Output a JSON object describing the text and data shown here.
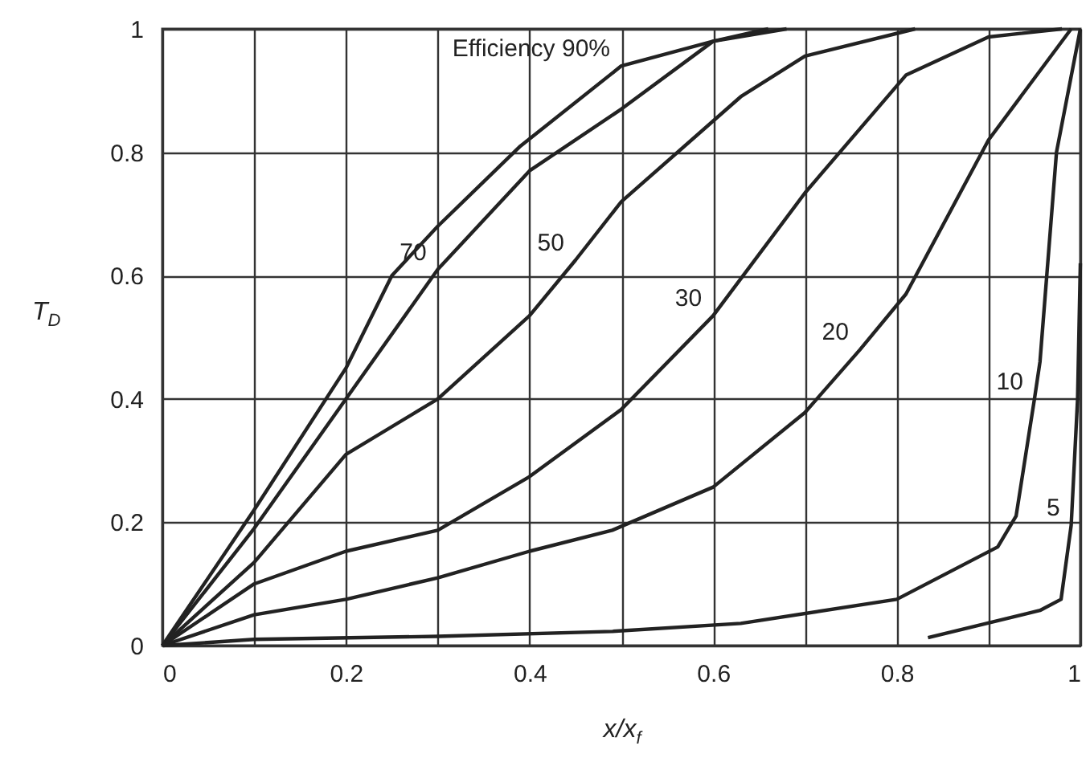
{
  "chart_data": {
    "type": "line",
    "xlabel": "x/x$_{f}$",
    "ylabel": "T$_{D}$",
    "xlim": [
      0,
      1
    ],
    "ylim": [
      0,
      1
    ],
    "xticks": [
      0,
      {
        "value": 0.1,
        "label": null
      },
      0.2,
      {
        "value": 0.3,
        "label": null
      },
      0.4,
      {
        "value": 0.5,
        "label": null
      },
      0.6,
      {
        "value": 0.7,
        "label": null
      },
      0.8,
      {
        "value": 0.9,
        "label": null
      },
      1
    ],
    "yticks": [
      0,
      0.2,
      0.4,
      0.6,
      0.8,
      1
    ],
    "grid": true,
    "marker": "none",
    "line_style": "solid",
    "series": [
      {
        "color": "#222222",
        "x": [
          0,
          0.1,
          0.2,
          0.25,
          0.3,
          0.39,
          0.5,
          0.6,
          0.68
        ],
        "values": [
          0,
          0.22,
          0.45,
          0.6,
          0.68,
          0.81,
          0.94,
          0.98,
          1.0
        ]
      },
      {
        "color": "#222222",
        "x": [
          0,
          0.1,
          0.2,
          0.3,
          0.4,
          0.5,
          0.6,
          0.66
        ],
        "values": [
          0,
          0.19,
          0.4,
          0.61,
          0.77,
          0.87,
          0.98,
          1.0
        ]
      },
      {
        "color": "#222222",
        "x": [
          0,
          0.1,
          0.2,
          0.3,
          0.4,
          0.45,
          0.5,
          0.63,
          0.7,
          0.82
        ],
        "values": [
          0,
          0.135,
          0.31,
          0.4,
          0.535,
          0.625,
          0.72,
          0.89,
          0.956,
          1.0
        ]
      },
      {
        "color": "#222222",
        "x": [
          0,
          0.1,
          0.2,
          0.3,
          0.4,
          0.5,
          0.6,
          0.7,
          0.81,
          0.9,
          0.98
        ],
        "values": [
          0,
          0.1,
          0.153,
          0.187,
          0.274,
          0.383,
          0.535,
          0.734,
          0.925,
          0.987,
          1.0
        ]
      },
      {
        "color": "#222222",
        "x": [
          0,
          0.1,
          0.2,
          0.3,
          0.4,
          0.49,
          0.6,
          0.7,
          0.76,
          0.81,
          0.9,
          0.99
        ],
        "values": [
          0,
          0.05,
          0.075,
          0.11,
          0.153,
          0.187,
          0.257,
          0.378,
          0.48,
          0.57,
          0.82,
          1.0
        ]
      },
      {
        "color": "#222222",
        "x": [
          0,
          0.1,
          0.3,
          0.49,
          0.63,
          0.8,
          0.91,
          0.93,
          0.95,
          0.956,
          0.974,
          1.0
        ],
        "values": [
          0,
          0.01,
          0.015,
          0.023,
          0.036,
          0.075,
          0.16,
          0.21,
          0.4,
          0.46,
          0.8,
          1.0
        ]
      },
      {
        "color": "#222222",
        "x": [
          0.834,
          0.956,
          0.979,
          0.99,
          0.997,
          1.0
        ],
        "values": [
          0.013,
          0.057,
          0.075,
          0.195,
          0.4,
          0.62
        ]
      }
    ],
    "annotations": [
      {
        "text": "Efficiency 90%",
        "x": 0.5,
        "y": 0.94
      },
      {
        "text": "70",
        "x": 0.3,
        "y": 0.61
      },
      {
        "text": "50",
        "x": 0.45,
        "y": 0.625
      },
      {
        "text": "30",
        "x": 0.6,
        "y": 0.535
      },
      {
        "text": "20",
        "x": 0.76,
        "y": 0.48
      },
      {
        "text": "10",
        "x": 0.95,
        "y": 0.4
      },
      {
        "text": "5",
        "x": 0.99,
        "y": 0.195
      }
    ]
  }
}
